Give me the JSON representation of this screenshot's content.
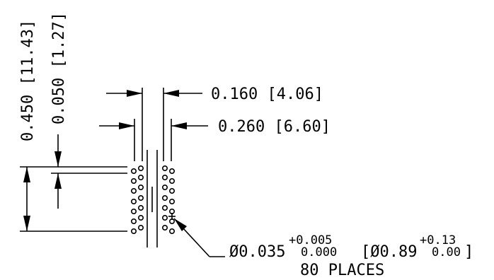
{
  "dimensions": {
    "height_overall": "0.450 [11.43]",
    "pitch_vertical": "0.050 [1.27]",
    "inner_width": "0.160 [4.06]",
    "outer_width": "0.260 [6.60]",
    "hole_diameter": "Ø0.035",
    "hole_tol_plus_in": "+0.005",
    "hole_tol_minus_in": "0.000",
    "hole_metric_open": "[Ø0.89",
    "hole_tol_plus_mm": "+0.13",
    "hole_tol_minus_mm": "0.00",
    "hole_metric_close": "]",
    "hole_count_note": "80 PLACES"
  },
  "colors": {
    "ink": "#000000",
    "paper": "#ffffff"
  }
}
